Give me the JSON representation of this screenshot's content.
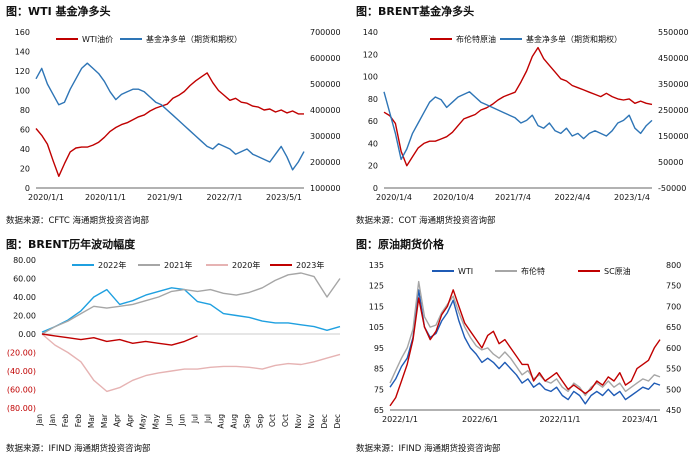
{
  "panels": [
    {
      "title": "图：WTI 基金净多头",
      "source": "数据来源：CFTC   海通期货投资咨询部"
    },
    {
      "title": "图：BRENT基金净多头",
      "source": "数据来源：COT   海通期货投资咨询部"
    },
    {
      "title": "图：BRENT历年波动幅度",
      "source": "数据来源：IFIND   海通期货投资咨询部"
    },
    {
      "title": "图：原油期货价格",
      "source": "数据来源：IFIND   海通期货投资咨询部"
    }
  ],
  "colors": {
    "red": "#c00000",
    "blue": "#2e75b6",
    "gray": "#a6a6a6",
    "pink": "#e6b3b3",
    "cyan": "#1fa0e0",
    "darkblue": "#1f5bb5"
  },
  "chart_data": [
    {
      "type": "line",
      "title": "WTI 基金净多头",
      "x_ticks": [
        "2020/1/1",
        "2020/11/1",
        "2021/9/1",
        "2022/7/1",
        "2023/5/1"
      ],
      "y_left": {
        "lim": [
          0,
          160
        ],
        "ticks": [
          "0",
          "20",
          "40",
          "60",
          "80",
          "100",
          "120",
          "140",
          "160"
        ]
      },
      "y_right": {
        "lim": [
          100000,
          700000
        ],
        "ticks": [
          "100000",
          "200000",
          "300000",
          "400000",
          "500000",
          "600000",
          "700000"
        ]
      },
      "series": [
        {
          "name": "WTI油价",
          "axis": "left",
          "color": "red",
          "values": [
            61,
            54,
            45,
            28,
            12,
            25,
            37,
            41,
            42,
            42,
            44,
            47,
            52,
            58,
            62,
            65,
            67,
            70,
            73,
            75,
            79,
            82,
            84,
            86,
            92,
            95,
            99,
            105,
            110,
            114,
            118,
            108,
            100,
            95,
            90,
            92,
            88,
            87,
            84,
            83,
            80,
            81,
            78,
            80,
            77,
            79,
            76,
            76
          ]
        },
        {
          "name": "基金净多单（期货和期权）",
          "axis": "right",
          "color": "blue",
          "values": [
            520000,
            560000,
            500000,
            460000,
            420000,
            430000,
            480000,
            520000,
            560000,
            580000,
            560000,
            540000,
            510000,
            470000,
            440000,
            460000,
            470000,
            480000,
            480000,
            470000,
            450000,
            430000,
            420000,
            400000,
            380000,
            360000,
            340000,
            320000,
            300000,
            280000,
            260000,
            250000,
            270000,
            260000,
            250000,
            230000,
            240000,
            250000,
            230000,
            220000,
            210000,
            200000,
            230000,
            260000,
            220000,
            170000,
            200000,
            240000
          ]
        }
      ]
    },
    {
      "type": "line",
      "title": "BRENT基金净多头",
      "x_ticks": [
        "2020/1/4",
        "2020/10/4",
        "2021/7/4",
        "2022/4/4",
        "2023/1/4"
      ],
      "y_left": {
        "lim": [
          0,
          140
        ],
        "ticks": [
          "0",
          "20",
          "40",
          "60",
          "80",
          "100",
          "120",
          "140"
        ]
      },
      "y_right": {
        "lim": [
          -50000,
          550000
        ],
        "ticks": [
          "-50000",
          "50000",
          "150000",
          "250000",
          "350000",
          "450000",
          "550000"
        ]
      },
      "series": [
        {
          "name": "布伦特原油",
          "axis": "left",
          "color": "red",
          "values": [
            68,
            65,
            58,
            33,
            20,
            28,
            36,
            40,
            42,
            42,
            44,
            46,
            50,
            56,
            62,
            64,
            66,
            70,
            72,
            75,
            79,
            82,
            84,
            86,
            95,
            105,
            118,
            126,
            116,
            110,
            104,
            98,
            96,
            92,
            90,
            88,
            86,
            84,
            82,
            85,
            82,
            80,
            79,
            80,
            76,
            78,
            76,
            75
          ]
        },
        {
          "name": "基金净多单（期货和期权）",
          "axis": "right",
          "color": "blue",
          "values": [
            320000,
            240000,
            160000,
            60000,
            100000,
            160000,
            200000,
            240000,
            280000,
            300000,
            290000,
            260000,
            280000,
            300000,
            310000,
            320000,
            300000,
            280000,
            270000,
            260000,
            250000,
            240000,
            230000,
            220000,
            200000,
            210000,
            230000,
            190000,
            180000,
            200000,
            170000,
            160000,
            180000,
            150000,
            160000,
            140000,
            160000,
            170000,
            160000,
            150000,
            170000,
            200000,
            210000,
            230000,
            180000,
            160000,
            190000,
            210000
          ]
        }
      ]
    },
    {
      "type": "line",
      "title": "BRENT历年波动幅度",
      "categories": [
        "Jan",
        "Jan",
        "Feb",
        "Feb",
        "Mar",
        "Mar",
        "Apr",
        "Apr",
        "May",
        "May",
        "Jun",
        "Jun",
        "Jul",
        "Jul",
        "Aug",
        "Aug",
        "Sep",
        "Sep",
        "Oct",
        "Oct",
        "Nov",
        "Nov",
        "Dec",
        "Dec"
      ],
      "y_lim": [
        -80,
        80
      ],
      "y_ticks": [
        "80.00",
        "60.00",
        "40.00",
        "20.00",
        "0.00",
        "(20.00)",
        "(40.00)",
        "(60.00)",
        "(80.00)"
      ],
      "series": [
        {
          "name": "2022年",
          "color": "cyan",
          "values": [
            2,
            8,
            15,
            25,
            40,
            48,
            32,
            36,
            42,
            46,
            50,
            48,
            35,
            32,
            22,
            20,
            18,
            14,
            12,
            12,
            10,
            8,
            4,
            8
          ]
        },
        {
          "name": "2021年",
          "color": "gray",
          "values": [
            0,
            8,
            14,
            22,
            30,
            28,
            30,
            32,
            36,
            40,
            46,
            48,
            46,
            48,
            44,
            42,
            45,
            50,
            58,
            64,
            66,
            62,
            40,
            60
          ]
        },
        {
          "name": "2020年",
          "color": "pink",
          "values": [
            0,
            -12,
            -20,
            -30,
            -50,
            -62,
            -58,
            -50,
            -45,
            -42,
            -40,
            -38,
            -38,
            -36,
            -35,
            -35,
            -36,
            -38,
            -34,
            -32,
            -33,
            -30,
            -26,
            -22
          ]
        },
        {
          "name": "2023年",
          "color": "red",
          "values": [
            0,
            -2,
            -4,
            -6,
            -4,
            -8,
            -6,
            -10,
            -8,
            -10,
            -12,
            -8,
            -2,
            null,
            null,
            null,
            null,
            null,
            null,
            null,
            null,
            null,
            null,
            null
          ]
        }
      ]
    },
    {
      "type": "line",
      "title": "原油期货价格",
      "x_ticks": [
        "2022/1/1",
        "2022/6/1",
        "2022/11/1",
        "2023/4/1"
      ],
      "y_left": {
        "lim": [
          65,
          135
        ],
        "ticks": [
          "65",
          "75",
          "85",
          "95",
          "105",
          "115",
          "125",
          "135"
        ]
      },
      "y_right": {
        "lim": [
          450,
          800
        ],
        "ticks": [
          "450",
          "500",
          "550",
          "600",
          "650",
          "700",
          "750",
          "800"
        ]
      },
      "series": [
        {
          "name": "WTI",
          "axis": "left",
          "color": "darkblue",
          "values": [
            76,
            80,
            86,
            90,
            100,
            123,
            105,
            100,
            102,
            108,
            112,
            118,
            108,
            100,
            95,
            92,
            88,
            90,
            88,
            85,
            88,
            85,
            82,
            78,
            80,
            76,
            78,
            75,
            74,
            76,
            72,
            70,
            74,
            72,
            68,
            72,
            74,
            72,
            75,
            72,
            74,
            70,
            72,
            74,
            76,
            75,
            78,
            77
          ]
        },
        {
          "name": "布伦特",
          "axis": "left",
          "color": "gray",
          "values": [
            78,
            84,
            90,
            95,
            104,
            127,
            110,
            105,
            106,
            112,
            116,
            120,
            112,
            105,
            100,
            96,
            94,
            95,
            92,
            90,
            93,
            90,
            86,
            82,
            84,
            80,
            82,
            79,
            78,
            80,
            76,
            74,
            78,
            76,
            72,
            76,
            78,
            76,
            79,
            76,
            78,
            74,
            76,
            78,
            80,
            79,
            82,
            81
          ]
        },
        {
          "name": "SC原油",
          "axis": "right",
          "color": "red",
          "values": [
            460,
            480,
            520,
            560,
            620,
            720,
            650,
            620,
            640,
            680,
            700,
            740,
            700,
            660,
            640,
            620,
            600,
            630,
            640,
            610,
            620,
            600,
            580,
            560,
            560,
            520,
            540,
            520,
            530,
            540,
            520,
            500,
            510,
            500,
            490,
            500,
            520,
            510,
            530,
            520,
            540,
            510,
            520,
            550,
            560,
            570,
            600,
            620
          ]
        }
      ]
    }
  ]
}
